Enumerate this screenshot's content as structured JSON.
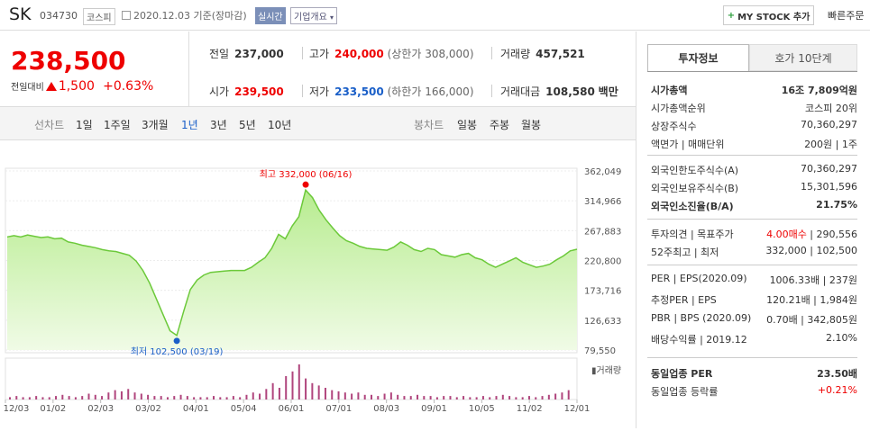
{
  "header": {
    "name": "SK",
    "code": "034730",
    "market": "코스피",
    "date": "2020.12.03  기준(장마감)",
    "live_label": "실시간",
    "corp_label": "기업개요",
    "mystock_label": "MY STOCK 추가",
    "quick_label": "빠른주문"
  },
  "price": {
    "current": "238,500",
    "change_label": "전일대비",
    "change": "1,500",
    "change_pct": "+0.63%"
  },
  "stats": {
    "prev_label": "전일",
    "prev": "237,000",
    "high_label": "고가",
    "high": "240,000",
    "high_limit": "(상한가 308,000)",
    "volume_label": "거래량",
    "volume": "457,521",
    "open_label": "시가",
    "open": "239,500",
    "low_label": "저가",
    "low": "233,500",
    "low_limit": "(하한가 166,000)",
    "amount_label": "거래대금",
    "amount": "108,580",
    "amount_unit": "백만"
  },
  "tabs": {
    "line_label": "선차트",
    "line": [
      "1일",
      "1주일",
      "3개월",
      "1년",
      "3년",
      "5년",
      "10년"
    ],
    "active": "1년",
    "candle_label": "봉차트",
    "candle": [
      "일봉",
      "주봉",
      "월봉"
    ]
  },
  "chart_data": {
    "type": "area",
    "y_ticks": [
      "362,049",
      "314,966",
      "267,883",
      "220,800",
      "173,716",
      "126,633",
      "79,550"
    ],
    "ylim": [
      79550,
      362049
    ],
    "x_ticks": [
      "12/03",
      "01/02",
      "02/03",
      "03/02",
      "04/01",
      "05/04",
      "06/01",
      "07/01",
      "08/03",
      "09/01",
      "10/05",
      "11/02",
      "12/01"
    ],
    "values": [
      258000,
      260000,
      258000,
      261000,
      259000,
      257000,
      258000,
      255000,
      256000,
      250000,
      248000,
      245000,
      243000,
      241000,
      238000,
      236000,
      235000,
      232000,
      229000,
      220000,
      205000,
      185000,
      160000,
      135000,
      110000,
      102500,
      140000,
      175000,
      190000,
      198000,
      202000,
      203000,
      204000,
      205000,
      205000,
      205000,
      210000,
      218000,
      225000,
      240000,
      262000,
      255000,
      275000,
      290000,
      332000,
      320000,
      300000,
      285000,
      272000,
      260000,
      252000,
      248000,
      243000,
      240000,
      239000,
      238000,
      237000,
      242000,
      250000,
      245000,
      238000,
      235000,
      240000,
      238000,
      230000,
      228000,
      226000,
      230000,
      232000,
      225000,
      222000,
      215000,
      210000,
      215000,
      220000,
      225000,
      218000,
      214000,
      210000,
      212000,
      215000,
      222000,
      228000,
      236000,
      238500
    ],
    "annotations": {
      "high": "최고 332,000 (06/16)",
      "low": "최저 102,500 (03/19)"
    },
    "volume_label": "거래량"
  },
  "info": {
    "tab_active": "투자정보",
    "tab_other": "호가 10단계",
    "rows1": [
      {
        "k": "시가총액",
        "v": "16조 7,809억원"
      },
      {
        "k": "시가총액순위",
        "v": "코스피 20위"
      },
      {
        "k": "상장주식수",
        "v": "70,360,297"
      },
      {
        "k": "액면가 | 매매단위",
        "v": "200원 | 1주"
      }
    ],
    "rows2": [
      {
        "k": "외국인한도주식수(A)",
        "v": "70,360,297"
      },
      {
        "k": "외국인보유주식수(B)",
        "v": "15,301,596"
      },
      {
        "k": "외국인소진율(B/A)",
        "v": "21.75%"
      }
    ],
    "rows3": [
      {
        "k": "투자의견 | 목표주가",
        "v1": "4.00매수",
        "v2": "290,556"
      },
      {
        "k": "52주최고 | 최저",
        "v": "332,000 | 102,500"
      }
    ],
    "rows4": [
      {
        "k": "PER | EPS(2020.09)",
        "v": "1006.33배 | 237원"
      },
      {
        "k": "추정PER | EPS",
        "v": "120.21배 | 1,984원"
      },
      {
        "k": "PBR | BPS (2020.09)",
        "v": "0.70배 | 342,805원"
      },
      {
        "k": "배당수익률 | 2019.12",
        "v": "2.10%"
      }
    ],
    "rows5": [
      {
        "k": "동일업종 PER",
        "v": "23.50배"
      },
      {
        "k": "동일업종 등락률",
        "v": "+0.21%"
      }
    ]
  }
}
